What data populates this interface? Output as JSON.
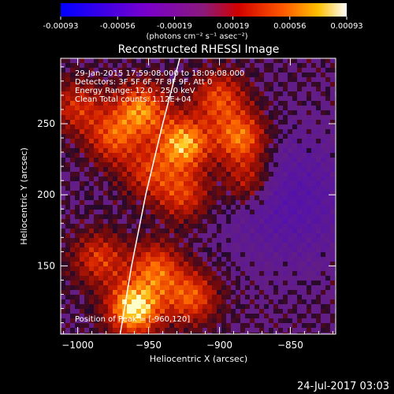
{
  "chart_data": {
    "type": "heatmap",
    "title": "Reconstructed RHESSI Image",
    "xlabel": "Heliocentric X (arcsec)",
    "ylabel": "Heliocentric Y (arcsec)",
    "xlim": [
      -1012,
      -818
    ],
    "ylim": [
      102,
      296
    ],
    "xticks": [
      -1000,
      -950,
      -900,
      -850
    ],
    "yticks": [
      150,
      200,
      250
    ],
    "xtick_labels": [
      "−1000",
      "−950",
      "−900",
      "−850"
    ],
    "ytick_labels": [
      "150",
      "200",
      "250"
    ],
    "colorbar": {
      "range": [
        -0.00093,
        0.00093
      ],
      "ticks": [
        -0.00093,
        -0.00056,
        -0.00019,
        0.00019,
        0.00056,
        0.00093
      ],
      "tick_labels": [
        "-0.00093",
        "-0.00056",
        "-0.00019",
        "0.00019",
        "0.00056",
        "0.00093"
      ],
      "unit_label": "(photons cm⁻² s⁻¹ asec⁻²)"
    },
    "info_lines": [
      "29-Jan-2015 17:59:08.000 to 18:09:08.000",
      "Detectors: 3F 5F 6F 7F 8F 9F, Att 0",
      "Energy Range: 12.0 - 25.0 keV",
      "Clean     Total counts: 1.12E+04"
    ],
    "position_label": "Position of Peak = [-960,120]",
    "peak": [
      -960,
      120
    ],
    "sources": [
      {
        "x": -960,
        "y": 120,
        "intensity": 1.0
      },
      {
        "x": -925,
        "y": 236,
        "intensity": 0.85
      },
      {
        "x": -955,
        "y": 260,
        "intensity": 0.72
      },
      {
        "x": -885,
        "y": 240,
        "intensity": 0.7
      },
      {
        "x": -975,
        "y": 240,
        "intensity": 0.55
      },
      {
        "x": -900,
        "y": 268,
        "intensity": 0.55
      },
      {
        "x": -945,
        "y": 148,
        "intensity": 0.6
      },
      {
        "x": -920,
        "y": 128,
        "intensity": 0.6
      },
      {
        "x": -985,
        "y": 155,
        "intensity": 0.5
      },
      {
        "x": -1000,
        "y": 262,
        "intensity": 0.45
      },
      {
        "x": -925,
        "y": 200,
        "intensity": 0.5
      },
      {
        "x": -880,
        "y": 210,
        "intensity": 0.45
      },
      {
        "x": -950,
        "y": 215,
        "intensity": 0.45
      }
    ],
    "negative_region": {
      "x": -850,
      "y": 195,
      "intensity": -0.35
    },
    "limb_curve": [
      [
        -970,
        102
      ],
      [
        -962,
        150
      ],
      [
        -952,
        200
      ],
      [
        -940,
        250
      ],
      [
        -928,
        296
      ]
    ]
  },
  "footer_timestamp": "24-Jul-2017 03:03"
}
